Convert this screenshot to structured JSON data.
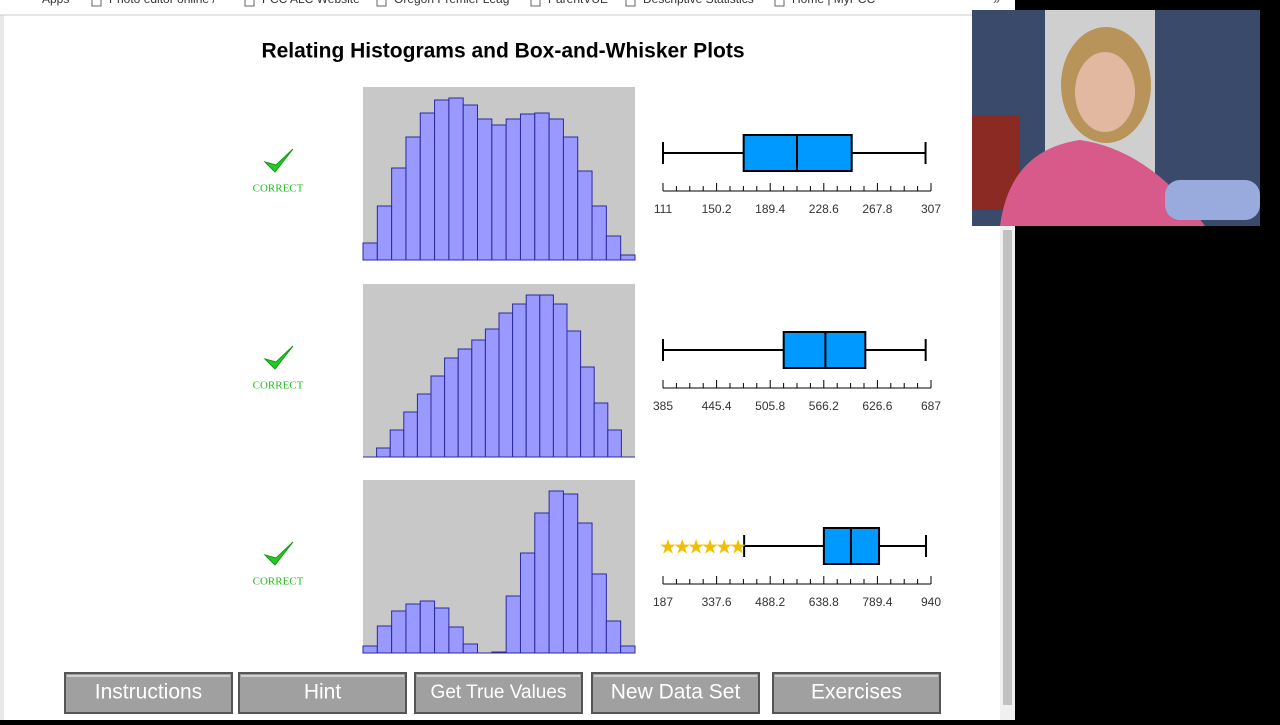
{
  "bookmarks": [
    "Apps",
    "Photo editor online /",
    "PCC ALC Website",
    "Oregon Premier Leag",
    "ParentVUE",
    "Descriptive Statistics",
    "Home | MyPCC"
  ],
  "title": "Relating Histograms and Box-and-Whisker Plots",
  "rows": [
    {
      "status": "CORRECT",
      "histogram": {
        "type": "histogram",
        "values": [
          17,
          54,
          92,
          123,
          147,
          160,
          162,
          155,
          141,
          135,
          141,
          146,
          147,
          141,
          123,
          89,
          54,
          24,
          5
        ]
      },
      "boxplot": {
        "type": "box",
        "min": 111,
        "q1": 170,
        "median": 209,
        "q3": 249,
        "max": 303,
        "outliers": [],
        "xlim": [
          111,
          307
        ],
        "xticks": [
          111,
          150.2,
          189.4,
          228.6,
          267.8,
          307
        ]
      }
    },
    {
      "status": "CORRECT",
      "histogram": {
        "type": "histogram",
        "values": [
          0,
          9,
          27,
          45,
          63,
          81,
          99,
          108,
          117,
          128,
          144,
          153,
          162,
          162,
          153,
          126,
          90,
          54,
          27,
          0
        ]
      },
      "boxplot": {
        "type": "box",
        "min": 385,
        "q1": 521,
        "median": 568,
        "q3": 613,
        "max": 681,
        "outliers": [],
        "xlim": [
          385,
          687
        ],
        "xticks": [
          385,
          445.4,
          505.8,
          566.2,
          626.6,
          687
        ]
      }
    },
    {
      "status": "CORRECT",
      "histogram": {
        "type": "histogram",
        "values": [
          7,
          27,
          42,
          49,
          52,
          45,
          26,
          9,
          0,
          1,
          57,
          100,
          140,
          162,
          159,
          130,
          79,
          32,
          7
        ]
      },
      "boxplot": {
        "type": "box",
        "min": 415,
        "q1": 639,
        "median": 715,
        "q3": 794,
        "max": 926,
        "outliers": [
          201,
          241,
          280,
          319,
          359,
          398
        ],
        "xlim": [
          187,
          940
        ],
        "xticks": [
          187,
          337.6,
          488.2,
          638.8,
          789.4,
          940
        ]
      }
    }
  ],
  "buttons": [
    "Instructions",
    "Hint",
    "Get True Values",
    "New Data Set",
    "Exercises"
  ]
}
